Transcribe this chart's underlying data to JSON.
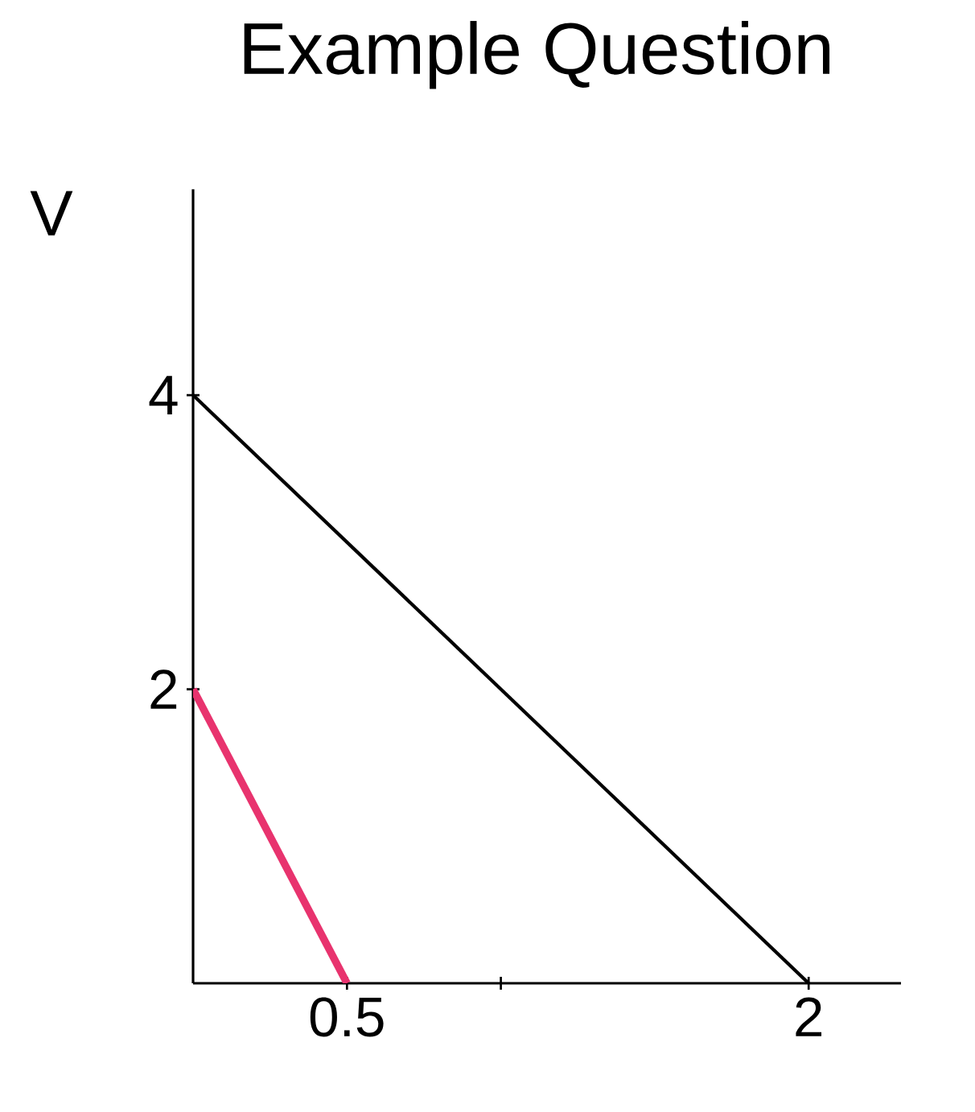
{
  "chart_data": {
    "type": "line",
    "title": "Example Question",
    "ylabel": "V",
    "series": [
      {
        "color": "#000000",
        "x": [
          0,
          2
        ],
        "values": [
          4,
          0
        ]
      },
      {
        "color": "#e8336e",
        "x": [
          0,
          0.5
        ],
        "values": [
          2,
          0
        ]
      }
    ],
    "xlim": [
      0,
      2.3
    ],
    "ylim": [
      0,
      5.4
    ],
    "xticks": [
      0.5,
      {
        "value": 1,
        "label": null
      },
      2
    ],
    "yticks": [
      2,
      4
    ],
    "grid": false,
    "marker": "none",
    "line_style": "solid"
  }
}
